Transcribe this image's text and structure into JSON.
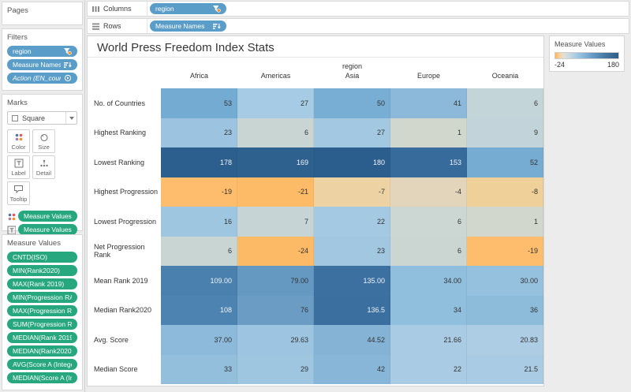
{
  "shelves": {
    "columns_label": "Columns",
    "rows_label": "Rows",
    "columns_pills": [
      {
        "text": "region",
        "icon": "filter-icon",
        "style": "blue"
      }
    ],
    "rows_pills": [
      {
        "text": "Measure Names",
        "icon": "sort-icon",
        "style": "blue"
      }
    ]
  },
  "sidebar": {
    "pages": {
      "title": "Pages"
    },
    "filters": {
      "title": "Filters",
      "pills": [
        {
          "text": "region",
          "icon": "filter-icon",
          "style": "blue"
        },
        {
          "text": "Measure Names",
          "icon": "sort-icon",
          "style": "blue"
        },
        {
          "text": "Action (EN_countr..",
          "icon": "action-icon",
          "style": "blue-italic"
        }
      ]
    },
    "marks": {
      "title": "Marks",
      "mark_type": "Square",
      "buttons": [
        {
          "label": "Color",
          "icon": "color-icon"
        },
        {
          "label": "Size",
          "icon": "size-icon"
        },
        {
          "label": "Label",
          "icon": "label-icon"
        },
        {
          "label": "Detail",
          "icon": "detail-icon"
        },
        {
          "label": "Tooltip",
          "icon": "tooltip-icon"
        }
      ],
      "pills": [
        {
          "text": "Measure Values",
          "style": "green",
          "left_icon": "color-icon"
        },
        {
          "text": "Measure Values",
          "style": "green",
          "left_icon": "label-icon"
        },
        {
          "text": "Measure Values",
          "style": "green",
          "left_icon": "detail-icon"
        },
        {
          "text": "Measure Na..",
          "style": "blue",
          "left_icon": "detail-icon",
          "icon": "sort-icon"
        }
      ]
    },
    "measure_values": {
      "title": "Measure Values",
      "pills": [
        {
          "text": "CNTD(ISO)",
          "style": "green"
        },
        {
          "text": "MIN(Rank2020)",
          "style": "green"
        },
        {
          "text": "MAX(Rank 2019)",
          "style": "green"
        },
        {
          "text": "MIN(Progression RA..",
          "style": "green"
        },
        {
          "text": "MAX(Progression RA..",
          "style": "green"
        },
        {
          "text": "SUM(Progression RA..",
          "style": "green"
        },
        {
          "text": "MEDIAN(Rank 2019)",
          "style": "green"
        },
        {
          "text": "MEDIAN(Rank2020)",
          "style": "green"
        },
        {
          "text": "AVG(Score A (Integer..",
          "style": "green"
        },
        {
          "text": "MEDIAN(Score A (Int..",
          "style": "green"
        }
      ]
    }
  },
  "legend": {
    "title": "Measure Values",
    "min_label": "-24",
    "max_label": "180"
  },
  "colors": {
    "pill_blue": "#5a9dc9",
    "pill_green": "#27a77d",
    "heat_orange_max": "#fdba66",
    "heat_blue_max": "#2d5f8e"
  },
  "chart_data": {
    "type": "heatmap",
    "title": "World Press Freedom Index Stats",
    "column_field": "region",
    "columns": [
      "Africa",
      "Americas",
      "Asia",
      "Europe",
      "Oceania"
    ],
    "color_domain": [
      -24,
      180
    ],
    "legend_position": "top-right",
    "rows": [
      {
        "label": "No. of Countries",
        "cells": [
          {
            "v": "53",
            "bg": "#74abd2"
          },
          {
            "v": "27",
            "bg": "#a6cbe4"
          },
          {
            "v": "50",
            "bg": "#78aed3"
          },
          {
            "v": "41",
            "bg": "#8cb9da"
          },
          {
            "v": "6",
            "bg": "#c4d5d9"
          }
        ]
      },
      {
        "label": "Highest Ranking",
        "cells": [
          {
            "v": "23",
            "bg": "#9cc4e0"
          },
          {
            "v": "6",
            "bg": "#c8d5d3"
          },
          {
            "v": "27",
            "bg": "#a2c8e2"
          },
          {
            "v": "1",
            "bg": "#d2d7cd"
          },
          {
            "v": "9",
            "bg": "#c2d4da"
          }
        ]
      },
      {
        "label": "Lowest Ranking",
        "cells": [
          {
            "v": "178",
            "bg": "#2d5f8e",
            "fg": "#f2f5f8"
          },
          {
            "v": "169",
            "bg": "#2f618f",
            "fg": "#f2f5f8"
          },
          {
            "v": "180",
            "bg": "#2c5e8d",
            "fg": "#f2f5f8"
          },
          {
            "v": "153",
            "bg": "#376b9c",
            "fg": "#f2f5f8"
          },
          {
            "v": "52",
            "bg": "#76acd2"
          }
        ]
      },
      {
        "label": "Highest Progression",
        "cells": [
          {
            "v": "-19",
            "bg": "#fdbd6c"
          },
          {
            "v": "-21",
            "bg": "#fdbb68"
          },
          {
            "v": "-7",
            "bg": "#edd3a4"
          },
          {
            "v": "-4",
            "bg": "#e3d5bc"
          },
          {
            "v": "-8",
            "bg": "#f0d099"
          }
        ]
      },
      {
        "label": "Lowest Progression",
        "cells": [
          {
            "v": "16",
            "bg": "#9fc6e1"
          },
          {
            "v": "7",
            "bg": "#c6d4d6"
          },
          {
            "v": "22",
            "bg": "#a4c9e2"
          },
          {
            "v": "6",
            "bg": "#ccd6d2"
          },
          {
            "v": "1",
            "bg": "#d2d7cd"
          }
        ]
      },
      {
        "label": "Net Progression Rank",
        "cells": [
          {
            "v": "6",
            "bg": "#c9d5d3"
          },
          {
            "v": "-24",
            "bg": "#fdba66"
          },
          {
            "v": "23",
            "bg": "#a1c7e1"
          },
          {
            "v": "6",
            "bg": "#cbd5d2"
          },
          {
            "v": "-19",
            "bg": "#fdbd6c"
          }
        ]
      },
      {
        "label": "Mean Rank 2019",
        "cells": [
          {
            "v": "109.00",
            "bg": "#4a80ae",
            "fg": "#eef3f7"
          },
          {
            "v": "79.00",
            "bg": "#6699c2"
          },
          {
            "v": "135.00",
            "bg": "#3c70a0",
            "fg": "#eef3f7"
          },
          {
            "v": "34.00",
            "bg": "#90bfdd"
          },
          {
            "v": "30.00",
            "bg": "#95c1de"
          }
        ]
      },
      {
        "label": "Median Rank2020",
        "cells": [
          {
            "v": "108",
            "bg": "#4d83b0",
            "fg": "#eef3f7"
          },
          {
            "v": "76",
            "bg": "#6a9cc4"
          },
          {
            "v": "136.5",
            "bg": "#3b6fa0",
            "fg": "#eef3f7"
          },
          {
            "v": "34",
            "bg": "#90bfdd"
          },
          {
            "v": "36",
            "bg": "#8dbcdb"
          }
        ]
      },
      {
        "label": "Avg. Score",
        "cells": [
          {
            "v": "37.00",
            "bg": "#8db9da"
          },
          {
            "v": "29.63",
            "bg": "#9dc5e1"
          },
          {
            "v": "44.52",
            "bg": "#84b3d6"
          },
          {
            "v": "21.66",
            "bg": "#aacbe4"
          },
          {
            "v": "20.83",
            "bg": "#adcde5"
          }
        ]
      },
      {
        "label": "Median Score",
        "cells": [
          {
            "v": "33",
            "bg": "#93bedc"
          },
          {
            "v": "29",
            "bg": "#9ec6e1"
          },
          {
            "v": "42",
            "bg": "#88b6d8"
          },
          {
            "v": "22",
            "bg": "#a9cbe3"
          },
          {
            "v": "21.5",
            "bg": "#aacbe4"
          }
        ]
      }
    ]
  }
}
